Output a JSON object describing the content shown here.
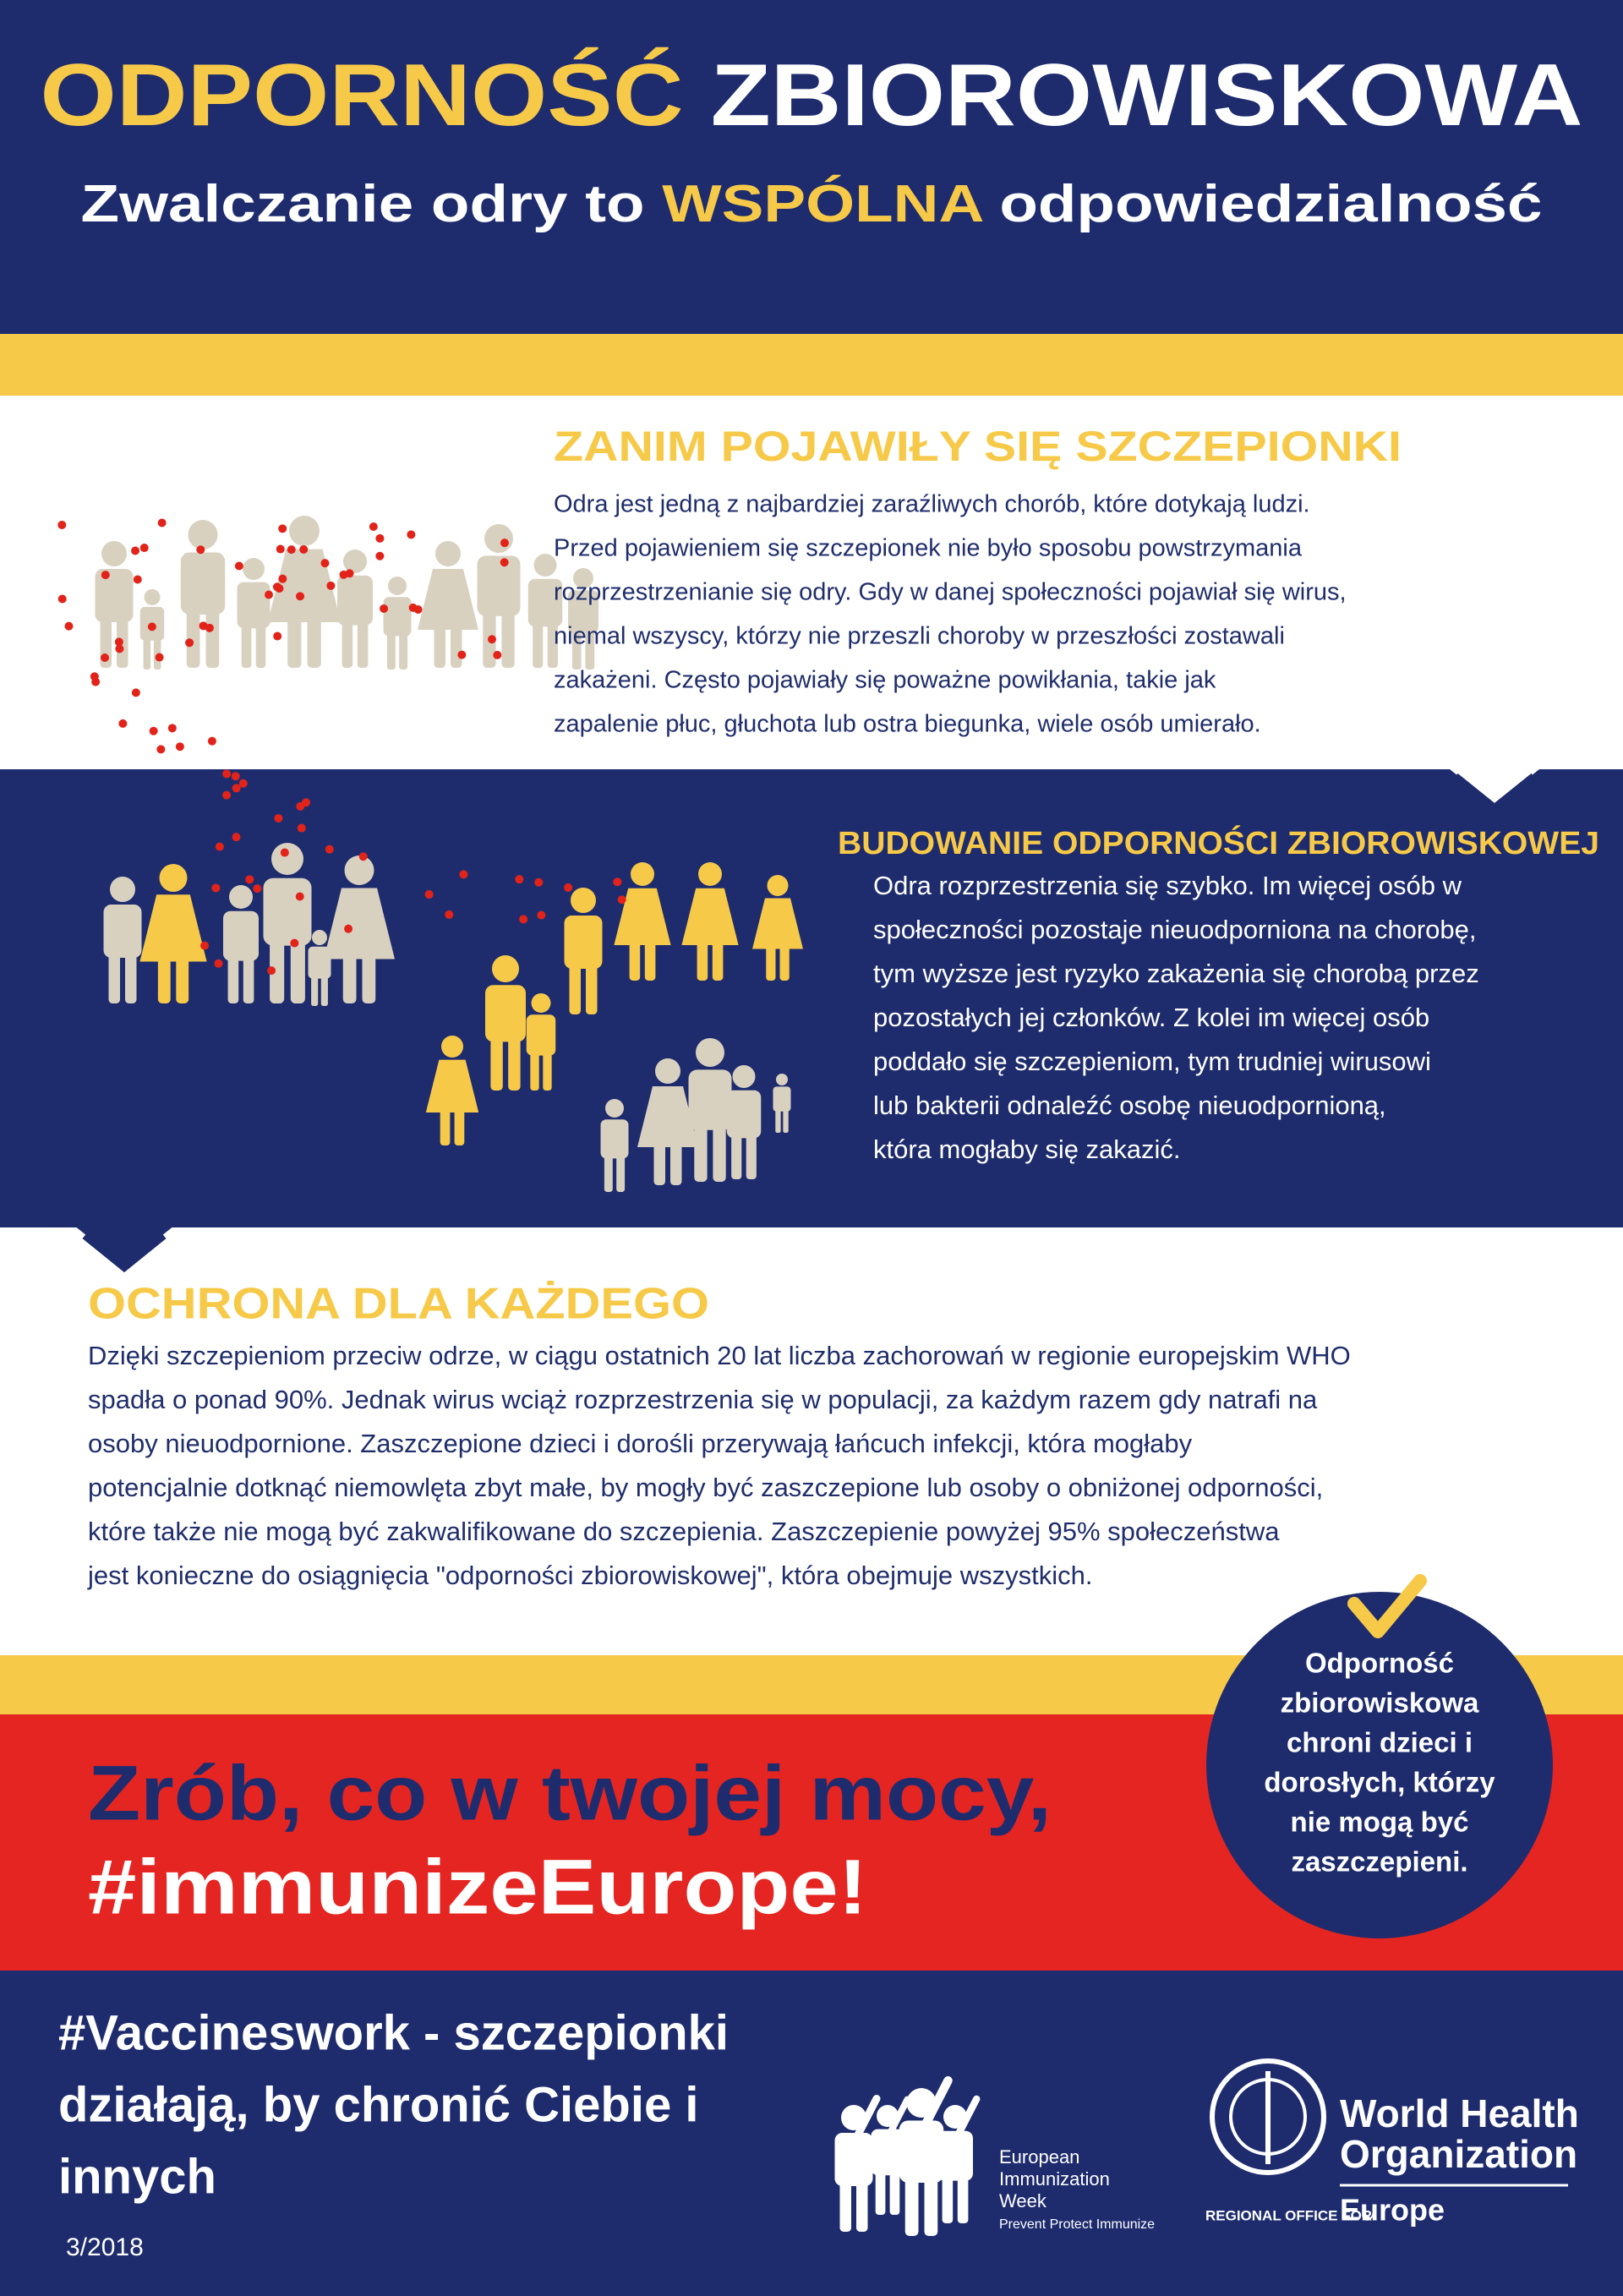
{
  "header": {
    "title_highlight": "ODPORNOŚĆ",
    "title_rest": "ZBIOROWISKOWA",
    "subtitle_start": "Zwalczanie odry to",
    "subtitle_highlight": "WSPÓLNA",
    "subtitle_end": "odpowiedzialność"
  },
  "sections": [
    {
      "heading": "ZANIM POJAWIŁY SIĘ SZCZEPIONKI",
      "lines": [
        "Odra jest jedną z najbardziej zaraźliwych chorób, które dotykają ludzi.",
        "Przed pojawieniem się szczepionek nie było sposobu powstrzymania",
        "rozprzestrzenianie się odry. Gdy w danej społeczności pojawiał się wirus,",
        "niemal wszyscy, którzy nie przeszli choroby w przeszłości zostawali",
        "zakażeni. Często pojawiały się poważne powikłania, takie jak",
        "zapalenie płuc, głuchota lub ostra biegunka, wiele osób umierało."
      ]
    },
    {
      "heading": "BUDOWANIE ODPORNOŚCI ZBIOROWISKOWEJ",
      "lines": [
        "Odra rozprzestrzenia się szybko. Im więcej osób w",
        "społeczności pozostaje nieuodporniona na chorobę,",
        "tym wyższe jest ryzyko zakażenia się chorobą przez",
        "pozostałych jej członków. Z kolei im więcej osób",
        "poddało się szczepieniom, tym trudniej wirusowi",
        "lub bakterii odnaleźć osobę nieuodpornioną,",
        "która mogłaby się zakazić."
      ]
    },
    {
      "heading": "OCHRONA DLA KAŻDEGO",
      "lines": [
        "Dzięki szczepieniom przeciw odrze, w ciągu ostatnich 20 lat liczba zachorowań w regionie europejskim WHO",
        "spadła o ponad 90%. Jednak wirus wciąż rozprzestrzenia się w populacji, za każdym razem gdy natrafi na",
        "osoby nieuodpornione. Zaszczepione dzieci i dorośli przerywają łańcuch infekcji, która mogłaby",
        "potencjalnie dotknąć niemowlęta zbyt małe, by mogły być zaszczepione lub osoby o obniżonej odporności,",
        "które także nie mogą być zakwalifikowane do szczepienia. Zaszczepienie powyżej 95% społeczeństwa",
        "jest konieczne do osiągnięcia \"odporności zbiorowiskowej\", która obejmuje wszystkich."
      ]
    }
  ],
  "call_to_action": {
    "line1": "Zrób, co w twojej mocy,",
    "line2": "#immunizeEurope!"
  },
  "badge": {
    "lines": [
      "Odporność",
      "zbiorowiskowa",
      "chroni dzieci i",
      "dorosłych, którzy",
      "nie mogą być",
      "zaszczepieni."
    ]
  },
  "footer": {
    "lines": [
      "#Vaccineswork - szczepionki",
      "działają, by chronić Ciebie i",
      "innych"
    ],
    "date": "3/2018"
  },
  "logos": {
    "eiw": [
      "European",
      "Immunization",
      "Week"
    ],
    "eiw_tagline": "Prevent Protect Immunize",
    "who": [
      "World Health",
      "Organization"
    ],
    "who_office": "REGIONAL OFFICE FOR",
    "who_region": "Europe"
  }
}
